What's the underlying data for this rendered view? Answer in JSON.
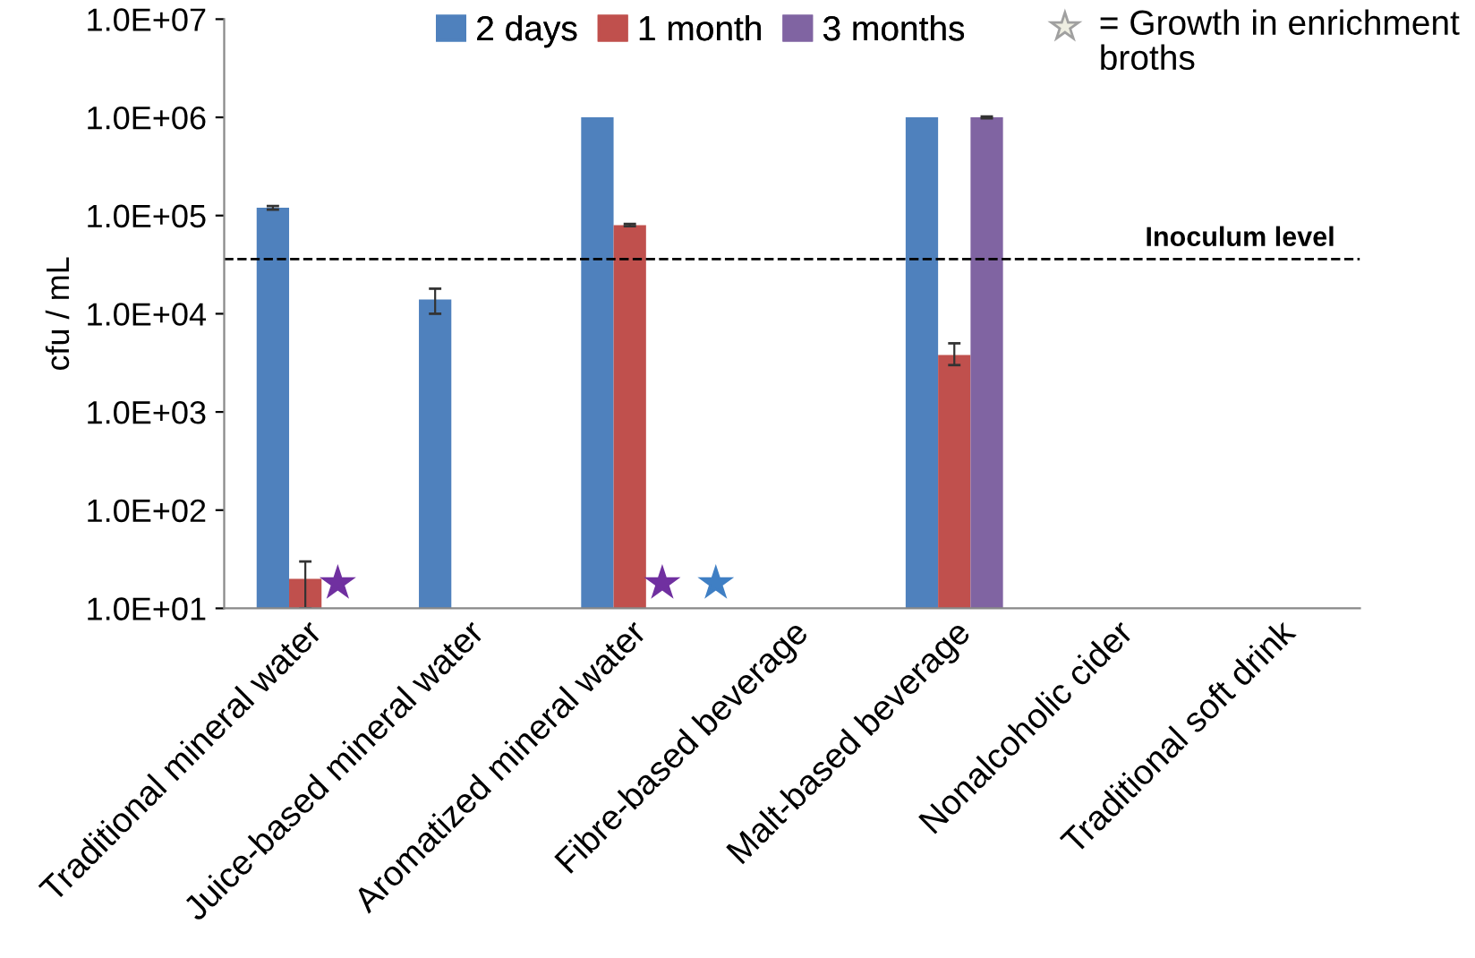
{
  "chart_data": {
    "type": "bar",
    "ylabel": "cfu / mL",
    "log": "y",
    "categories": [
      "Traditional mineral water",
      "Juice-based mineral water",
      "Aromatized mineral water",
      "Fibre-based beverage",
      "Malt-based beverage",
      "Nonalcoholic cider",
      "Traditional soft drink"
    ],
    "series": [
      {
        "name": "2 days",
        "color": "#4f81bd",
        "values": [
          120000,
          14000,
          1000000,
          null,
          1000000,
          null,
          null
        ],
        "errors": [
          [
            115000,
            125000
          ],
          [
            10000,
            18000
          ],
          null,
          null,
          null,
          null,
          null
        ]
      },
      {
        "name": "1 month",
        "color": "#c0504d",
        "values": [
          20,
          null,
          80000,
          null,
          3800,
          null,
          null
        ],
        "errors": [
          [
            10,
            30
          ],
          null,
          [
            78000,
            82000
          ],
          null,
          [
            3000,
            5000
          ],
          null,
          null
        ]
      },
      {
        "name": "3 months",
        "color": "#8064a2",
        "values": [
          null,
          null,
          null,
          null,
          1000000,
          null,
          null
        ],
        "errors": [
          null,
          null,
          null,
          null,
          [
            980000,
            1020000
          ],
          null,
          null
        ]
      }
    ],
    "annotations": [
      "= Growth in enrichment broths"
    ],
    "ylim": [
      10,
      10000000
    ],
    "yticks": [
      {
        "value": 10,
        "label": "1.0E+01"
      },
      {
        "value": 100,
        "label": "1.0E+02"
      },
      {
        "value": 1000,
        "label": "1.0E+03"
      },
      {
        "value": 10000,
        "label": "1.0E+04"
      },
      {
        "value": 100000,
        "label": "1.0E+05"
      },
      {
        "value": 1000000,
        "label": "1.0E+06"
      },
      {
        "value": 10000000,
        "label": "1.0E+07"
      }
    ],
    "ref_lines": [
      {
        "axis": "y",
        "value": 36000,
        "label": "Inoculum level",
        "line_style": "dashed",
        "color": "#000000"
      }
    ],
    "grid": false,
    "legend": "top"
  }
}
